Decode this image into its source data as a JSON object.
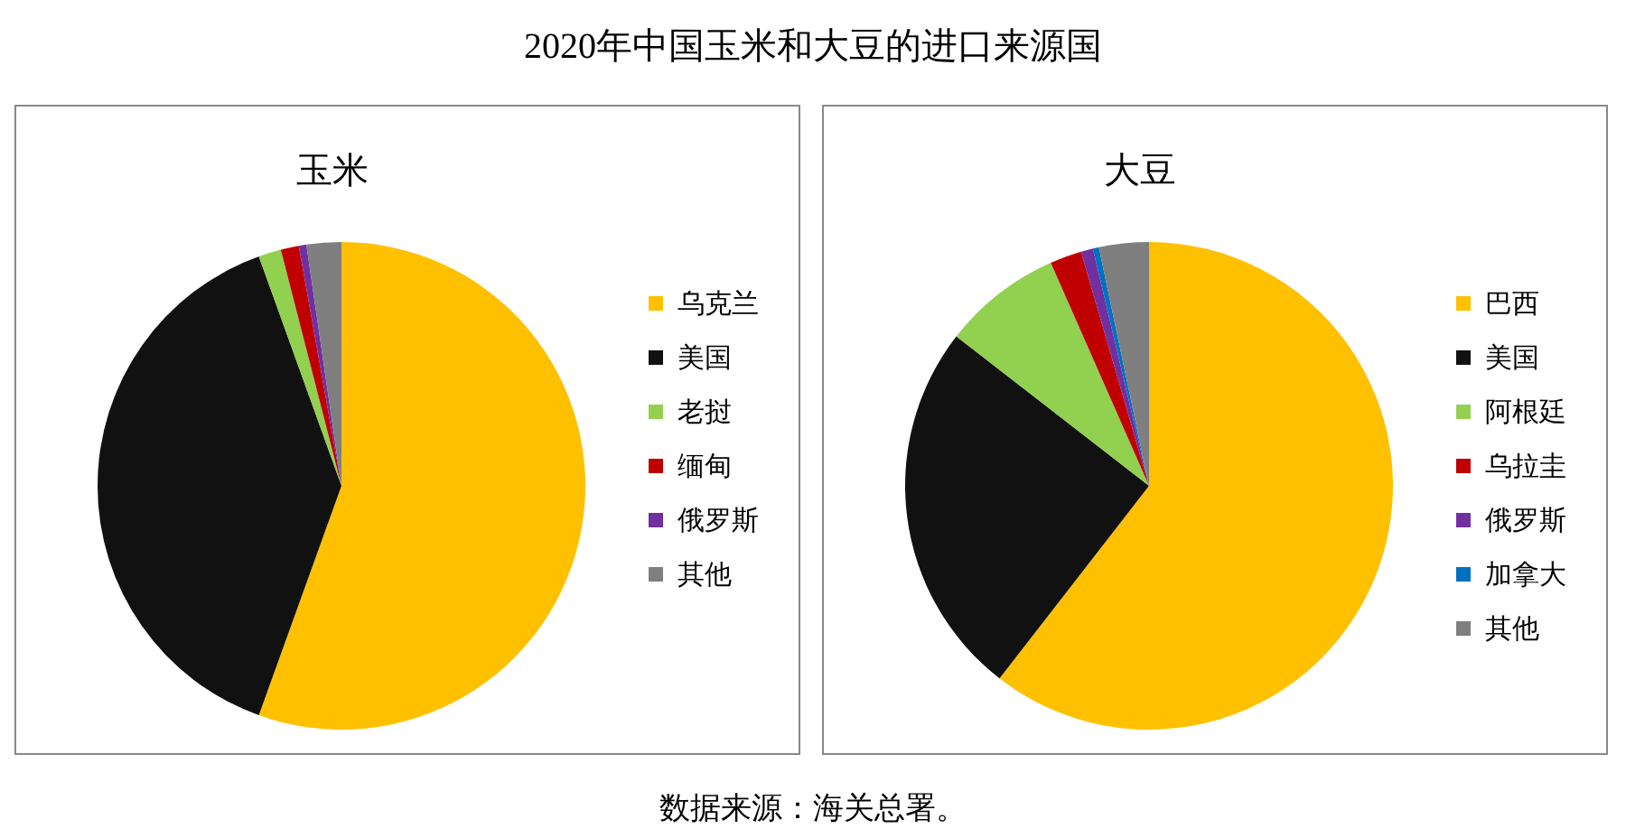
{
  "chart_data": [
    {
      "type": "pie",
      "title": "玉米",
      "categories": [
        "乌克兰",
        "美国",
        "老挝",
        "缅甸",
        "俄罗斯",
        "其他"
      ],
      "values": [
        55.5,
        39.0,
        1.5,
        1.2,
        0.5,
        2.3
      ],
      "colors": [
        "#ffc000",
        "#111111",
        "#92d050",
        "#c00000",
        "#7030a0",
        "#7f7f7f"
      ],
      "legend": "right"
    },
    {
      "type": "pie",
      "title": "大豆",
      "categories": [
        "巴西",
        "美国",
        "阿根廷",
        "乌拉圭",
        "俄罗斯",
        "加拿大",
        "其他"
      ],
      "values": [
        60.5,
        25.0,
        7.9,
        2.1,
        0.8,
        0.4,
        3.3
      ],
      "colors": [
        "#ffc000",
        "#111111",
        "#92d050",
        "#c00000",
        "#7030a0",
        "#0070c0",
        "#7f7f7f"
      ],
      "legend": "right",
      "subtitle": "2020年中国玉米和大豆的进口来源国",
      "annotations": [
        "数据来源：海关总署。"
      ]
    }
  ]
}
